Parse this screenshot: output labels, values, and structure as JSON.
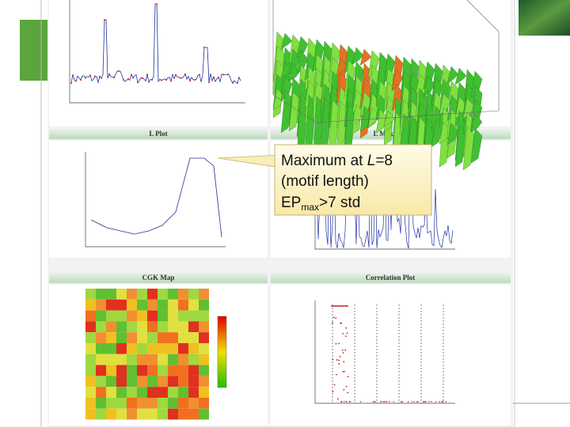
{
  "panels": {
    "l_plot": {
      "title": "L Plot"
    },
    "l_max_plot": {
      "title": "L Max Plot"
    },
    "cgk_map": {
      "title": "CGK Map"
    },
    "correlation_plot": {
      "title": "Correlation Plot"
    }
  },
  "callout": {
    "line1": [
      "Maximum at ",
      "L",
      "=8"
    ],
    "line2": "(motif length)",
    "line3": [
      "EP",
      "max",
      ">7 std"
    ]
  }
}
